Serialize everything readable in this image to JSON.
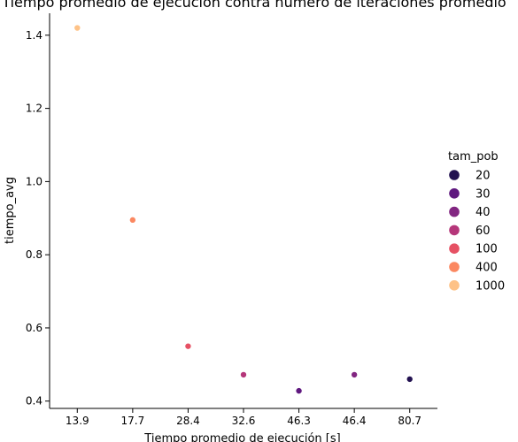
{
  "chart_data": {
    "type": "scatter",
    "title": "Tiempo promedio de ejecución contra número de iteraciones promedio",
    "xlabel": "Tiempo promedio de ejecución [s]",
    "ylabel": "tiempo_avg",
    "x_categories": [
      "13.9",
      "17.7",
      "28.4",
      "32.6",
      "46.3",
      "46.4",
      "80.7"
    ],
    "ylim": [
      0.38,
      1.46
    ],
    "yticks": [
      0.4,
      0.6,
      0.8,
      1.0,
      1.2,
      1.4
    ],
    "ytick_labels": [
      "0.4",
      "0.6",
      "0.8",
      "1.0",
      "1.2",
      "1.4"
    ],
    "grid": false,
    "legend": {
      "title": "tam_pob",
      "placement": "right",
      "entries": [
        {
          "label": "20",
          "color": "#221150"
        },
        {
          "label": "30",
          "color": "#5f187f"
        },
        {
          "label": "40",
          "color": "#822681"
        },
        {
          "label": "60",
          "color": "#b5367a"
        },
        {
          "label": "100",
          "color": "#e65164"
        },
        {
          "label": "400",
          "color": "#fb8861"
        },
        {
          "label": "1000",
          "color": "#fec287"
        }
      ]
    },
    "points": [
      {
        "x": "13.9",
        "y": 1.42,
        "tam_pob": "1000",
        "color": "#fec287"
      },
      {
        "x": "17.7",
        "y": 0.895,
        "tam_pob": "400",
        "color": "#fb8861"
      },
      {
        "x": "28.4",
        "y": 0.55,
        "tam_pob": "100",
        "color": "#e65164"
      },
      {
        "x": "32.6",
        "y": 0.472,
        "tam_pob": "60",
        "color": "#b5367a"
      },
      {
        "x": "46.3",
        "y": 0.428,
        "tam_pob": "30",
        "color": "#5f187f"
      },
      {
        "x": "46.4",
        "y": 0.472,
        "tam_pob": "40",
        "color": "#822681"
      },
      {
        "x": "80.7",
        "y": 0.46,
        "tam_pob": "20",
        "color": "#221150"
      }
    ]
  }
}
